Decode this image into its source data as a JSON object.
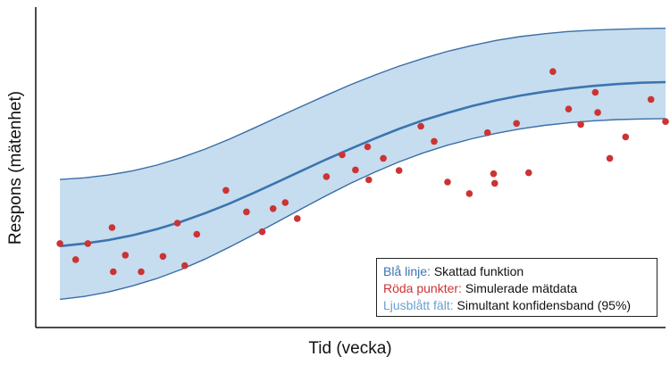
{
  "colors": {
    "line": "#3a75b0",
    "band_fill": "#c6dcef",
    "band_edge": "#3a6ea5",
    "points": "#cc3333",
    "legend_band_text": "#6a9fd0"
  },
  "chart_data": {
    "type": "scatter",
    "xlabel": "Tid (vecka)",
    "ylabel": "Respons (mätenhet)",
    "xlim": [
      0,
      52
    ],
    "ylim": [
      0,
      100
    ],
    "grid": false,
    "legend_placement": "bottom-right",
    "legend": [
      {
        "key": "Blå linje:",
        "text": "Skattad funktion"
      },
      {
        "key": "Röda punkter:",
        "text": "Simulerade mätdata"
      },
      {
        "key": "Ljusblått fält:",
        "text": "Simultant konfidensband (95%)"
      }
    ],
    "series": [
      {
        "type": "line",
        "x": [
          2,
          4,
          6,
          8,
          10,
          12,
          14,
          16,
          18,
          20,
          22,
          24,
          26,
          28,
          30,
          32,
          34,
          36,
          38,
          40,
          42,
          44,
          46,
          48,
          50,
          52
        ],
        "y": [
          25.4,
          26.2,
          27.3,
          28.8,
          30.7,
          33.0,
          35.7,
          38.7,
          42.0,
          45.5,
          49.0,
          52.5,
          55.8,
          59.0,
          62.0,
          64.7,
          67.0,
          69.1,
          70.9,
          72.4,
          73.6,
          74.6,
          75.4,
          76.0,
          76.4,
          76.6
        ]
      },
      {
        "type": "band",
        "x": [
          2,
          4,
          6,
          8,
          10,
          12,
          14,
          16,
          18,
          20,
          22,
          24,
          26,
          28,
          30,
          32,
          34,
          36,
          38,
          40,
          42,
          44,
          46,
          48,
          50,
          52
        ],
        "lower": [
          8.8,
          9.7,
          11.1,
          13.0,
          15.3,
          18.1,
          21.4,
          25.1,
          29.0,
          33.1,
          37.2,
          41.2,
          45.0,
          48.5,
          51.7,
          54.5,
          56.9,
          58.9,
          60.6,
          62.0,
          63.1,
          63.9,
          64.5,
          64.9,
          65.1,
          65.2
        ],
        "upper": [
          46.2,
          46.7,
          47.6,
          48.9,
          50.7,
          53.0,
          55.7,
          58.8,
          62.2,
          65.7,
          69.1,
          72.5,
          75.8,
          78.8,
          81.6,
          84.0,
          86.2,
          88.0,
          89.6,
          90.8,
          91.7,
          92.4,
          92.8,
          93.1,
          93.3,
          93.4
        ]
      },
      {
        "type": "scatter",
        "x": [
          2,
          3.3,
          4.3,
          6.3,
          6.4,
          7.4,
          8.7,
          10.5,
          11.7,
          12.3,
          13.3,
          15.7,
          17.4,
          18.7,
          19.6,
          20.6,
          21.6,
          24.0,
          25.3,
          26.4,
          27.4,
          27.5,
          28.7,
          30.0,
          31.8,
          32.9,
          34.0,
          35.8,
          37.3,
          37.8,
          37.9,
          39.7,
          40.7,
          42.7,
          44.0,
          45.0,
          46.2,
          46.4,
          47.4,
          48.7,
          50.8,
          52.0
        ],
        "y": [
          26.2,
          21.2,
          26.2,
          31.2,
          17.4,
          22.6,
          17.4,
          22.2,
          32.6,
          19.3,
          29.1,
          42.8,
          36.1,
          29.9,
          37.1,
          39.0,
          34.0,
          47.1,
          53.9,
          49.2,
          56.4,
          46.1,
          52.8,
          49.0,
          62.8,
          58.1,
          45.4,
          41.8,
          60.8,
          48.0,
          45.0,
          63.7,
          48.3,
          79.9,
          68.2,
          63.4,
          73.4,
          67.1,
          52.8,
          59.5,
          71.2,
          64.3
        ]
      }
    ]
  }
}
